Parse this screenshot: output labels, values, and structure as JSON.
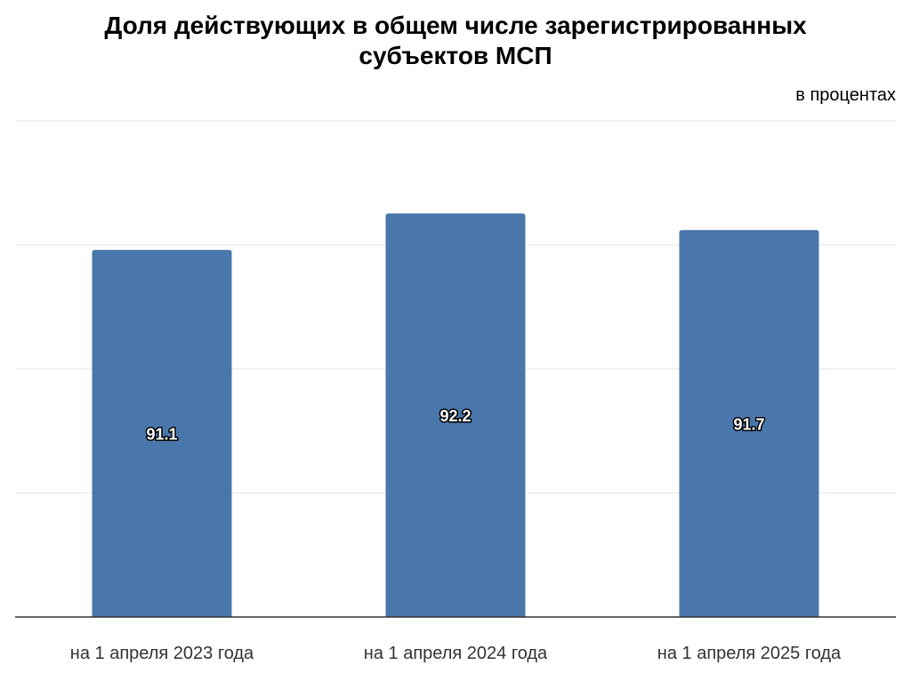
{
  "chart_data": {
    "type": "bar",
    "title": "Доля действующих в общем числе зарегистрированных субъектов МСП",
    "title_lines": [
      "Доля действующих в общем числе зарегистрированных",
      "субъектов МСП"
    ],
    "unit_note": "в процентах",
    "categories": [
      "на 1 апреля 2023 года",
      "на 1 апреля 2024 года",
      "на 1 апреля 2025 года"
    ],
    "values": [
      91.1,
      92.2,
      91.7
    ],
    "data_labels": [
      "91.1",
      "92.2",
      "91.7"
    ],
    "xlabel": "",
    "ylabel": "",
    "ylim": [
      80,
      95
    ],
    "y_ticks_shown": false,
    "grid": true,
    "grid_count": 4,
    "legend": "none",
    "colors": {
      "bar": "#4a77ab",
      "grid": "#e6e6e6",
      "axis": "#333333",
      "label_fill": "#ffffff",
      "label_stroke": "#000000",
      "category_text": "#333333"
    }
  }
}
